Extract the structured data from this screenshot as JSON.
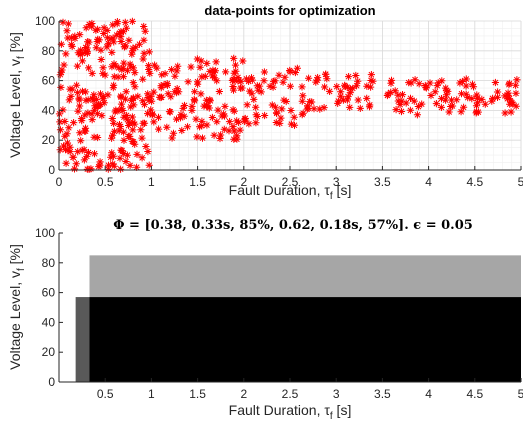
{
  "chart_data": [
    {
      "type": "scatter",
      "title": "data-points for optimization",
      "xlabel": "Fault Duration, τ",
      "xlabel_sub": "f",
      "xlabel_unit": " [s]",
      "ylabel": "Voltage Level, v",
      "ylabel_sub": "f",
      "ylabel_unit": " [%]",
      "xlim": [
        0,
        5
      ],
      "ylim": [
        0,
        100
      ],
      "xticks": [
        0,
        0.5,
        1,
        1.5,
        2,
        2.5,
        3,
        3.5,
        4,
        4.5,
        5
      ],
      "xtick_labels": [
        "0",
        "0.5",
        "1",
        "1.5",
        "2",
        "2.5",
        "3",
        "3.5",
        "4",
        "4.5",
        "5"
      ],
      "yticks": [
        0,
        20,
        40,
        60,
        80,
        100
      ],
      "ytick_labels": [
        "0",
        "20",
        "40",
        "60",
        "80",
        "100"
      ],
      "grid": true,
      "minor_grid": true,
      "marker": "*",
      "color": "#ff0000",
      "bands": [
        {
          "x": [
            0.0,
            1.0
          ],
          "ylow": 0,
          "yhigh": 100,
          "n": 260
        },
        {
          "x": [
            1.0,
            2.0
          ],
          "ylow": 20,
          "yhigh": 75,
          "n": 120
        },
        {
          "x": [
            2.0,
            2.75
          ],
          "ylow": 30,
          "yhigh": 70,
          "n": 60
        },
        {
          "x": [
            2.75,
            3.4
          ],
          "ylow": 40,
          "yhigh": 65,
          "n": 40
        },
        {
          "x": [
            3.55,
            5.0
          ],
          "ylow": 37,
          "yhigh": 62,
          "n": 90
        }
      ]
    },
    {
      "type": "area",
      "title": "Φ = [0.38, 0.33s, 85%, 0.62, 0.18s, 57%]. ϵ = 0.05",
      "xlabel": "Fault Duration, τ",
      "xlabel_sub": "f",
      "xlabel_unit": " [s]",
      "ylabel": "Voltage Level, v",
      "ylabel_sub": "f",
      "ylabel_unit": " [%]",
      "xlim": [
        0,
        5
      ],
      "ylim": [
        0,
        100
      ],
      "xticks": [
        0.5,
        1,
        1.5,
        2,
        2.5,
        3,
        3.5,
        4,
        4.5,
        5
      ],
      "xtick_labels": [
        "0.5",
        "1",
        "1.5",
        "2",
        "2.5",
        "3",
        "3.5",
        "4",
        "4.5",
        "5"
      ],
      "yticks": [
        0,
        20,
        40,
        60,
        80,
        100
      ],
      "ytick_labels": [
        "0",
        "20",
        "40",
        "60",
        "80",
        "100"
      ],
      "grid": false,
      "regions": [
        {
          "x0": 0.33,
          "x1": 5.0,
          "y0": 57,
          "y1": 85,
          "color": "#a6a6a6"
        },
        {
          "x0": 0.18,
          "x1": 0.33,
          "y0": 0,
          "y1": 57,
          "color": "#595959"
        },
        {
          "x0": 0.33,
          "x1": 5.0,
          "y0": 0,
          "y1": 57,
          "color": "#000000"
        }
      ]
    }
  ]
}
